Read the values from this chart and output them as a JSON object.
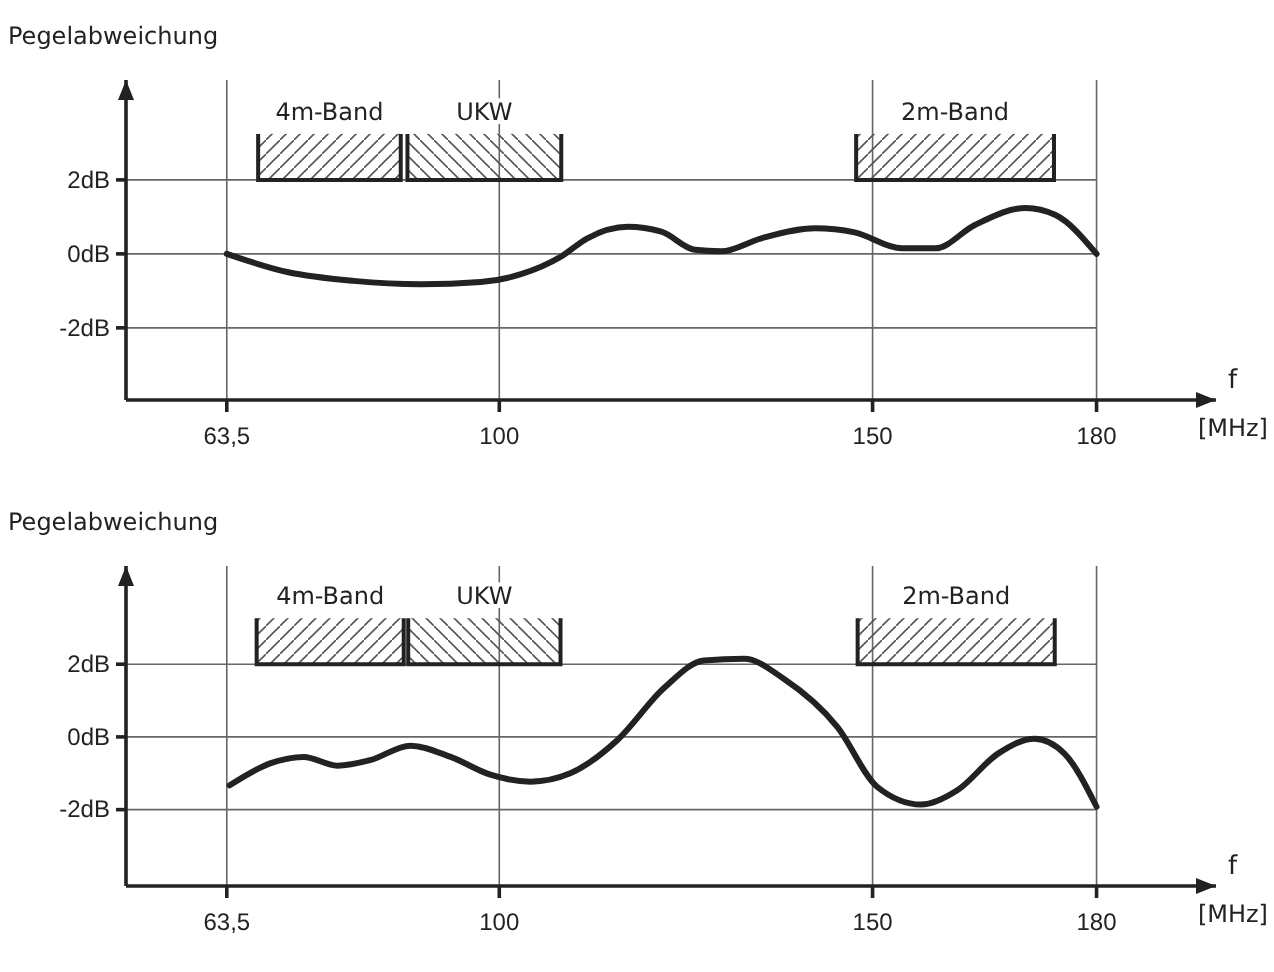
{
  "chart_data": [
    {
      "type": "line",
      "ylabel": "Pegelabweichung",
      "xlabel": "f",
      "annotations": [
        "[MHz]"
      ],
      "grid": true,
      "xlim": [
        50,
        196
      ],
      "ylim": [
        -3.95,
        4.7
      ],
      "xticks": [
        {
          "value": 63.5,
          "label": "63,5"
        },
        100,
        150,
        180
      ],
      "yticks": [
        {
          "value": -2,
          "label": "-2dB"
        },
        {
          "value": 0,
          "label": "0dB"
        },
        {
          "value": 2,
          "label": "2dB"
        }
      ],
      "bands": [
        {
          "axis": "x",
          "from": 67.7,
          "to": 86.8,
          "label": "4m-Band"
        },
        {
          "axis": "x",
          "from": 87.7,
          "to": 108.3,
          "label": "UKW"
        },
        {
          "axis": "x",
          "from": 147.8,
          "to": 174.3,
          "label": "2m-Band"
        }
      ],
      "series": [
        {
          "color": "#222222",
          "x": [
            63.5,
            71.6,
            80.5,
            89.5,
            97.5,
            102.9,
            108.3,
            111.8,
            117.2,
            121.7,
            126.2,
            129.7,
            135.1,
            142.3,
            147.6,
            153.9,
            158.4,
            163.7,
            170.5,
            174.5,
            180
          ],
          "values": [
            0,
            -0.49,
            -0.73,
            -0.82,
            -0.76,
            -0.55,
            -0.07,
            0.42,
            0.73,
            0.6,
            0.11,
            0.07,
            0.42,
            0.69,
            0.58,
            0.15,
            0.15,
            0.78,
            1.24,
            1.05,
            0
          ]
        }
      ]
    },
    {
      "type": "line",
      "ylabel": "Pegelabweichung",
      "xlabel": "f",
      "annotations": [
        "[MHz]"
      ],
      "grid": true,
      "xlim": [
        50,
        196
      ],
      "ylim": [
        -4.1,
        4.7
      ],
      "xticks": [
        {
          "value": 63.5,
          "label": "63,5"
        },
        100,
        150,
        180
      ],
      "yticks": [
        {
          "value": -2,
          "label": "-2dB"
        },
        {
          "value": 0,
          "label": "0dB"
        },
        {
          "value": 2,
          "label": "2dB"
        }
      ],
      "bands": [
        {
          "axis": "x",
          "from": 67.5,
          "to": 87.2,
          "label": "4m-Band"
        },
        {
          "axis": "x",
          "from": 87.8,
          "to": 108.2,
          "label": "UKW"
        },
        {
          "axis": "x",
          "from": 148,
          "to": 174.4,
          "label": "2m-Band"
        }
      ],
      "series": [
        {
          "color": "#222222",
          "x": [
            63.9,
            69.3,
            73.8,
            78.3,
            82.7,
            88.1,
            93.5,
            98.8,
            104.2,
            109.5,
            115.8,
            122.1,
            127.4,
            132.8,
            138.1,
            145.3,
            150.6,
            156.5,
            161.4,
            166.8,
            171.7,
            175.7,
            180
          ],
          "values": [
            -1.33,
            -0.73,
            -0.55,
            -0.79,
            -0.64,
            -0.24,
            -0.55,
            -1.04,
            -1.23,
            -1.0,
            -0.09,
            1.35,
            2.1,
            2.15,
            1.6,
            0.27,
            -1.37,
            -1.86,
            -1.46,
            -0.46,
            -0.05,
            -0.46,
            -1.92
          ]
        }
      ]
    }
  ]
}
